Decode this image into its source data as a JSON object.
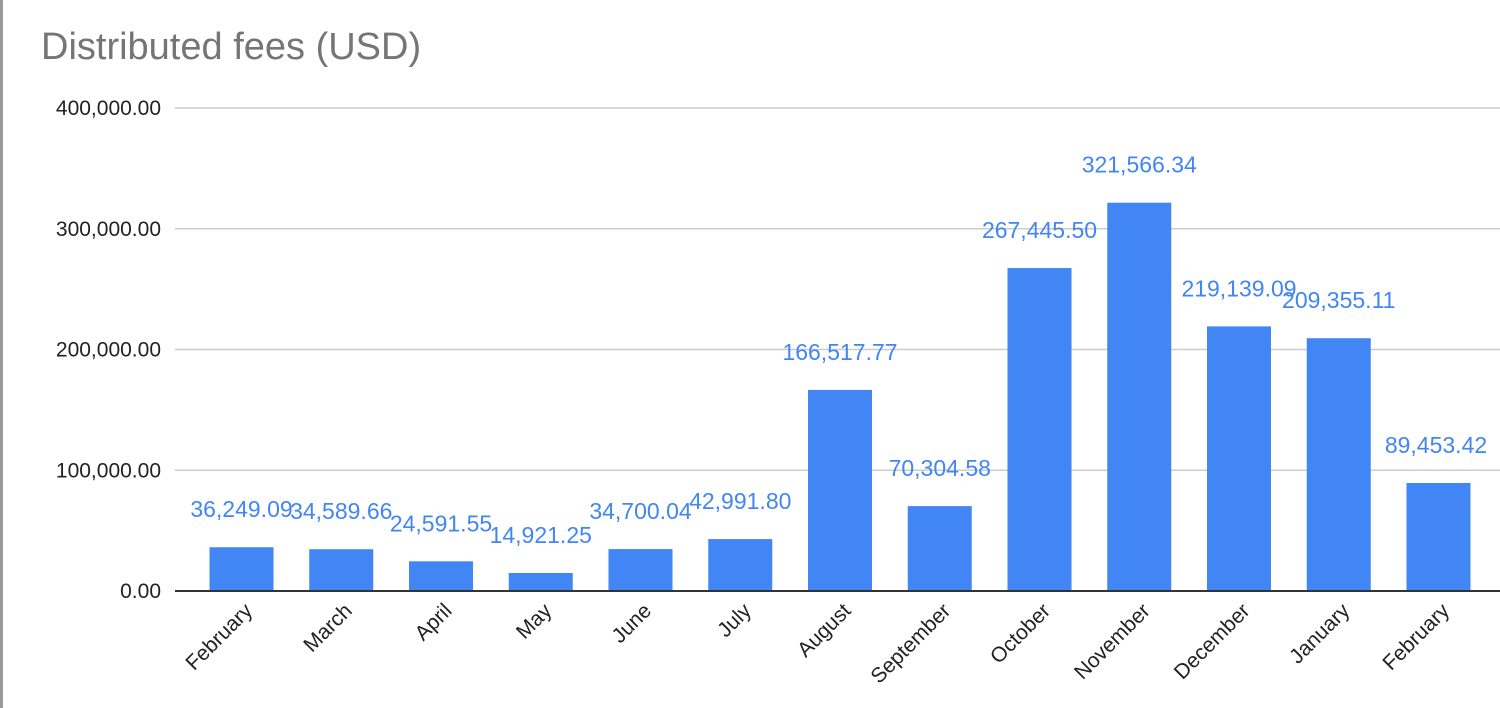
{
  "chart_data": {
    "type": "bar",
    "title": "Distributed fees (USD)",
    "xlabel": "",
    "ylabel": "",
    "ylim": [
      0,
      400000
    ],
    "yticks": [
      {
        "value": 0,
        "label": "0.00"
      },
      {
        "value": 100000,
        "label": "100,000.00"
      },
      {
        "value": 200000,
        "label": "200,000.00"
      },
      {
        "value": 300000,
        "label": "300,000.00"
      },
      {
        "value": 400000,
        "label": "400,000.00"
      }
    ],
    "grid": true,
    "legend": "none",
    "bar_color": "#4285f4",
    "label_color": "#4285f4",
    "grid_color": "#cccccc",
    "axis_color": "#333333",
    "categories": [
      "February",
      "March",
      "April",
      "May",
      "June",
      "July",
      "August",
      "September",
      "October",
      "November",
      "December",
      "January",
      "February"
    ],
    "values": [
      36249.09,
      34589.66,
      24591.55,
      14921.25,
      34700.04,
      42991.8,
      166517.77,
      70304.58,
      267445.5,
      321566.34,
      219139.09,
      209355.11,
      89453.42
    ],
    "data_labels": [
      "36,249.09",
      "34,589.66",
      "24,591.55",
      "14,921.25",
      "34,700.04",
      "42,991.80",
      "166,517.77",
      "70,304.58",
      "267,445.50",
      "321,566.34",
      "219,139.09",
      "209,355.11",
      "89,453.42"
    ]
  }
}
